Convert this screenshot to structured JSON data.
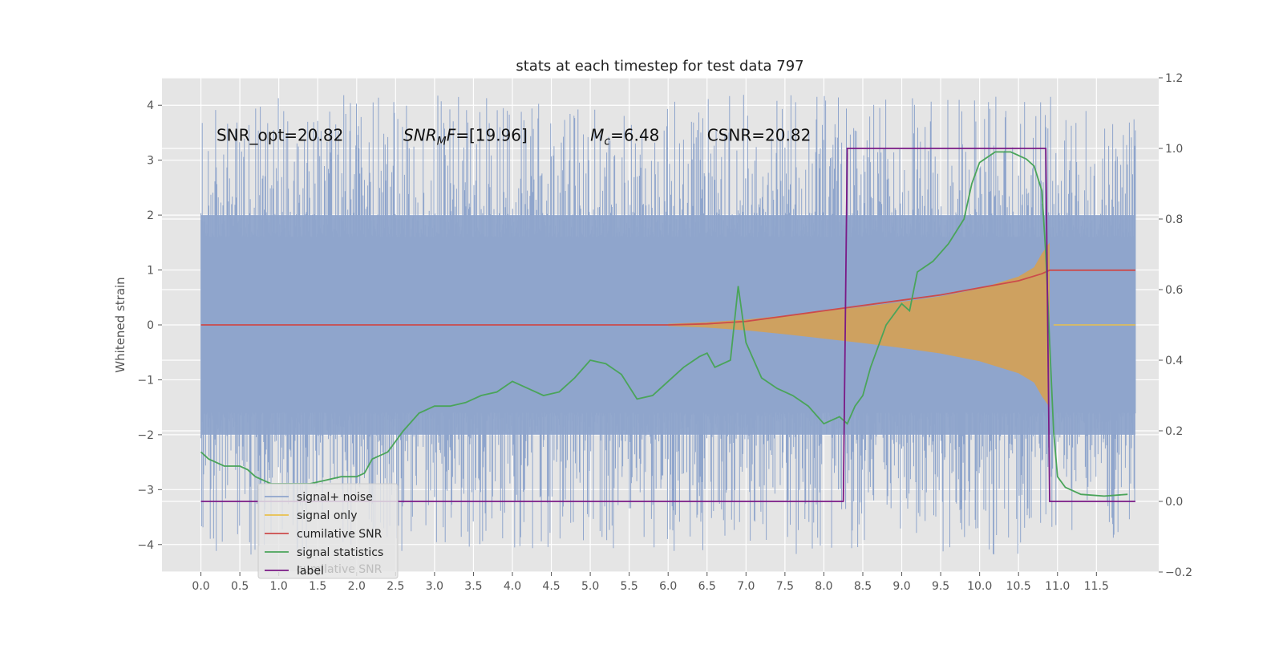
{
  "chart_data": {
    "type": "line",
    "title": "stats at each timestep for test data 797",
    "ylabel": "Whitened strain",
    "xlabel": "",
    "xlim": [
      -0.5,
      12.3
    ],
    "ylim": [
      -4.5,
      4.5
    ],
    "y2lim": [
      -0.2,
      1.2
    ],
    "grid": true,
    "legend_position": "lower-left",
    "x_ticks": [
      "0.0",
      "0.5",
      "1.0",
      "1.5",
      "2.0",
      "2.5",
      "3.0",
      "3.5",
      "4.0",
      "4.5",
      "5.0",
      "5.5",
      "6.0",
      "6.5",
      "7.0",
      "7.5",
      "8.0",
      "8.5",
      "9.0",
      "9.5",
      "10.0",
      "10.5",
      "11.0",
      "11.5"
    ],
    "y_ticks": [
      "4",
      "3",
      "2",
      "1",
      "0",
      "−1",
      "−2",
      "−3",
      "−4"
    ],
    "y2_ticks": [
      "1.2",
      "1.0",
      "0.8",
      "0.6",
      "0.4",
      "0.2",
      "0.0",
      "−0.2"
    ],
    "annotations": [
      {
        "text": "SNR_opt=20.82",
        "x": 0.2,
        "y": 3.35
      },
      {
        "text": "SNR_MF=[19.96]",
        "x": 2.6,
        "y": 3.35
      },
      {
        "text": "M_c=6.48",
        "x": 5.0,
        "y": 3.35
      },
      {
        "text": "CSNR=20.82",
        "x": 6.5,
        "y": 3.35
      }
    ],
    "series": [
      {
        "name": "signal+ noise",
        "color": "#8fa5cc",
        "axis": "left",
        "noise_band": [
          -2.0,
          2.0
        ],
        "x_range": [
          0.0,
          12.0
        ]
      },
      {
        "name": "signal only",
        "color": "#e8c04c",
        "fill": "#d2a05a",
        "axis": "left",
        "envelope_x": [
          6.0,
          6.5,
          7.0,
          7.5,
          8.0,
          8.5,
          9.0,
          9.5,
          10.0,
          10.5,
          10.7,
          10.8,
          10.9
        ],
        "envelope_y": [
          0.02,
          0.05,
          0.1,
          0.17,
          0.25,
          0.33,
          0.42,
          0.52,
          0.66,
          0.88,
          1.05,
          1.3,
          1.5
        ]
      },
      {
        "name": "cumilative SNR",
        "color": "#cc4b4b",
        "axis": "right",
        "x": [
          0.0,
          6.0,
          6.5,
          7.0,
          7.5,
          8.0,
          8.5,
          9.0,
          9.5,
          10.0,
          10.5,
          10.8,
          10.9,
          10.95,
          12.0
        ],
        "y": [
          0.5,
          0.5,
          0.503,
          0.51,
          0.525,
          0.54,
          0.555,
          0.57,
          0.585,
          0.605,
          0.625,
          0.645,
          0.655,
          0.655,
          0.655
        ]
      },
      {
        "name": "signal statistics",
        "color": "#4aa45a",
        "axis": "right",
        "x": [
          0.0,
          0.1,
          0.2,
          0.3,
          0.4,
          0.5,
          0.6,
          0.7,
          0.8,
          0.9,
          1.0,
          1.2,
          1.4,
          1.6,
          1.8,
          2.0,
          2.1,
          2.2,
          2.4,
          2.6,
          2.8,
          3.0,
          3.2,
          3.4,
          3.6,
          3.8,
          4.0,
          4.2,
          4.4,
          4.6,
          4.8,
          5.0,
          5.2,
          5.4,
          5.6,
          5.8,
          6.0,
          6.2,
          6.4,
          6.5,
          6.6,
          6.8,
          6.9,
          7.0,
          7.1,
          7.2,
          7.4,
          7.6,
          7.8,
          8.0,
          8.2,
          8.3,
          8.4,
          8.5,
          8.6,
          8.8,
          9.0,
          9.1,
          9.2,
          9.4,
          9.6,
          9.8,
          9.9,
          10.0,
          10.2,
          10.4,
          10.6,
          10.7,
          10.8,
          10.85,
          10.9,
          10.95,
          11.0,
          11.1,
          11.3,
          11.6,
          11.9
        ],
        "y": [
          0.14,
          0.12,
          0.11,
          0.1,
          0.1,
          0.1,
          0.09,
          0.07,
          0.06,
          0.05,
          0.05,
          0.05,
          0.05,
          0.06,
          0.07,
          0.07,
          0.08,
          0.12,
          0.14,
          0.2,
          0.25,
          0.27,
          0.27,
          0.28,
          0.3,
          0.31,
          0.34,
          0.32,
          0.3,
          0.31,
          0.35,
          0.4,
          0.39,
          0.36,
          0.29,
          0.3,
          0.34,
          0.38,
          0.41,
          0.42,
          0.38,
          0.4,
          0.61,
          0.45,
          0.4,
          0.35,
          0.32,
          0.3,
          0.27,
          0.22,
          0.24,
          0.22,
          0.27,
          0.3,
          0.38,
          0.5,
          0.56,
          0.54,
          0.65,
          0.68,
          0.73,
          0.8,
          0.9,
          0.96,
          0.99,
          0.99,
          0.97,
          0.95,
          0.88,
          0.7,
          0.45,
          0.2,
          0.07,
          0.04,
          0.02,
          0.015,
          0.02
        ]
      },
      {
        "name": "label",
        "color": "#7b1a86",
        "axis": "right",
        "x": [
          0.0,
          8.25,
          8.3,
          10.85,
          10.9,
          12.0
        ],
        "y": [
          0.0,
          0.0,
          1.0,
          1.0,
          0.0,
          0.0
        ]
      }
    ],
    "legend_ghost_text": "cumilative SNR"
  }
}
